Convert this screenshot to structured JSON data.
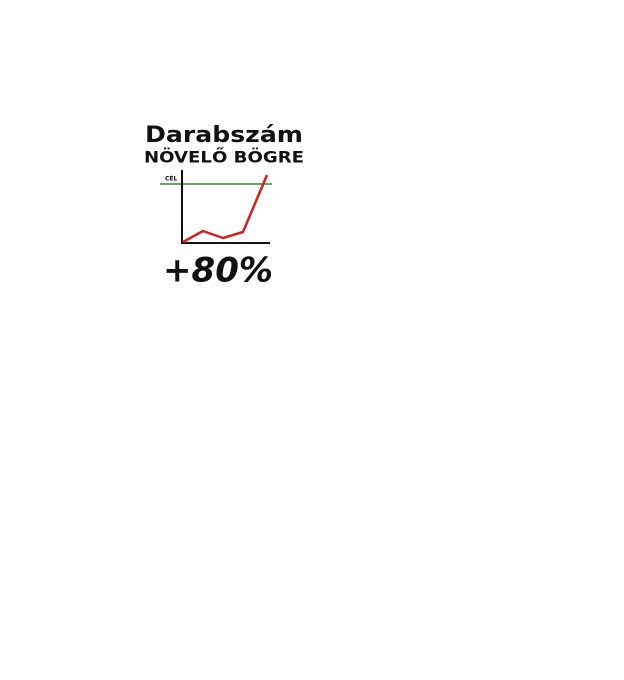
{
  "title": "Darabszám",
  "subtitle": "NÖVELŐ BÖGRE",
  "goal_label": "CÉL",
  "result": "+80%"
}
